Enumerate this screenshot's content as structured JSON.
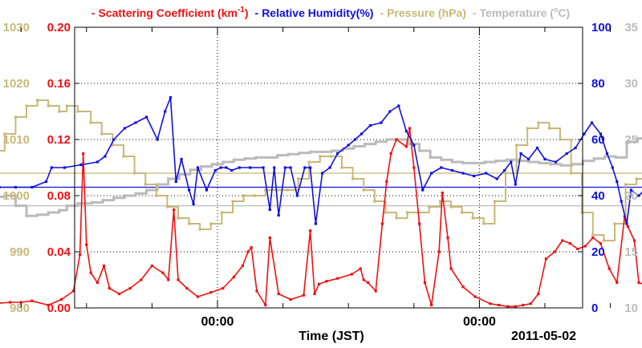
{
  "chart_data": {
    "type": "line",
    "xlabel": "Time (JST)",
    "date_label": "2011-05-02",
    "x_tick_labels": [
      "00:00",
      "00:00"
    ],
    "x_unit": "hours relative to first 00:00 mark",
    "legend": [
      {
        "prefix": "-",
        "text": "Scattering Coefficient (km",
        "sup": "-1",
        "suffix": ")",
        "color": "#ee1111"
      },
      {
        "prefix": "-",
        "text": "Relative Humidity(%)",
        "sup": "",
        "suffix": "",
        "color": "#1111dd"
      },
      {
        "prefix": "-",
        "text": "Pressure (hPa)",
        "sup": "",
        "suffix": "",
        "color": "#c8b878"
      },
      {
        "prefix": "-",
        "text": "Temperature (",
        "sup": "",
        "suffix": "C)",
        "color": "#bbbbbb"
      }
    ],
    "axes": {
      "pressure": {
        "ticks": [
          "980",
          "990",
          "1000",
          "1010",
          "1020",
          "1030"
        ],
        "range": [
          980,
          1030
        ],
        "color": "#c8b878"
      },
      "scattering": {
        "ticks": [
          "0.00",
          "0.04",
          "0.08",
          "0.12",
          "0.16",
          "0.20"
        ],
        "range": [
          0,
          0.2
        ],
        "color": "#ee1111"
      },
      "humidity": {
        "ticks": [
          "0",
          "20",
          "40",
          "60",
          "80",
          "100"
        ],
        "range": [
          0,
          100
        ],
        "color": "#1111dd"
      },
      "temperature": {
        "ticks": [
          "10",
          "15",
          "20",
          "25",
          "30",
          "35"
        ],
        "range": [
          10,
          35
        ],
        "color": "#bbbbbb"
      }
    },
    "grid": true,
    "reference_lines": [
      {
        "axis": "pressure",
        "value": 1004,
        "color": "#c8b878"
      },
      {
        "axis": "humidity",
        "value": 43,
        "color": "#1111dd"
      },
      {
        "axis": "temperature",
        "value": 19.1,
        "color": "#bbbbbb"
      }
    ],
    "series": [
      {
        "name": "Scattering Coefficient",
        "axis": "scattering",
        "color": "#ee1111",
        "x": [
          -21.3,
          -20.5,
          -19.0,
          -18.0,
          -17.0,
          -15.5,
          -14.3,
          -13.2,
          -12.6,
          -12.3,
          -12.0,
          -11.6,
          -11.0,
          -10.4,
          -9.9,
          -9.0,
          -8.0,
          -7.0,
          -6.0,
          -5.0,
          -4.5,
          -4.0,
          -3.6,
          -2.8,
          -1.8,
          -0.6,
          0.5,
          1.5,
          2.3,
          2.8,
          3.1,
          3.6,
          4.4,
          4.8,
          5.6,
          6.7,
          7.9,
          8.5,
          8.9,
          9.3,
          10.0,
          11.0,
          12.3,
          13.1,
          13.4,
          13.8,
          14.5,
          15.1,
          15.5,
          15.9,
          16.4,
          17.3,
          17.6,
          18.0,
          18.5,
          19.0,
          19.6,
          20.3,
          20.6,
          21.1,
          21.4,
          22.5,
          23.6,
          25.0,
          25.8,
          26.6,
          27.3,
          28.0,
          28.7,
          29.4,
          30.1,
          30.9,
          31.6,
          32.3,
          33.0,
          33.7,
          34.4,
          35.1,
          35.9,
          36.6,
          37.3,
          37.6,
          38.2,
          38.6,
          39.4
        ],
        "y": [
          0.01,
          0.003,
          0.004,
          0.004,
          0.005,
          0.002,
          0.006,
          0.012,
          0.038,
          0.11,
          0.045,
          0.025,
          0.018,
          0.03,
          0.014,
          0.01,
          0.014,
          0.02,
          0.03,
          0.025,
          0.02,
          0.07,
          0.02,
          0.014,
          0.008,
          0.011,
          0.014,
          0.022,
          0.03,
          0.04,
          0.043,
          0.012,
          0.002,
          0.05,
          0.01,
          0.006,
          0.009,
          0.055,
          0.01,
          0.017,
          0.019,
          0.021,
          0.024,
          0.028,
          0.02,
          0.018,
          0.012,
          0.06,
          0.09,
          0.11,
          0.12,
          0.115,
          0.128,
          0.1,
          0.06,
          0.018,
          0.002,
          0.04,
          0.082,
          0.05,
          0.028,
          0.015,
          0.008,
          0.003,
          0.002,
          0.001,
          0.001,
          0.002,
          0.003,
          0.01,
          0.035,
          0.04,
          0.048,
          0.046,
          0.042,
          0.044,
          0.05,
          0.046,
          0.028,
          0.018,
          0.065,
          0.058,
          0.048,
          0.018,
          0.016
        ]
      },
      {
        "name": "Relative Humidity(%)",
        "axis": "humidity",
        "color": "#1111dd",
        "x": [
          -21.3,
          -20.0,
          -18.5,
          -17.0,
          -15.7,
          -15.2,
          -14.0,
          -12.5,
          -11.0,
          -10.3,
          -9.5,
          -8.5,
          -7.5,
          -6.5,
          -5.5,
          -4.8,
          -4.3,
          -3.8,
          -3.3,
          -2.6,
          -2.2,
          -1.8,
          -1.0,
          -0.2,
          0.3,
          0.8,
          1.3,
          2.0,
          3.0,
          4.2,
          4.8,
          5.2,
          5.6,
          6.2,
          6.7,
          7.3,
          8.0,
          8.5,
          9.0,
          9.6,
          10.3,
          11.0,
          12.0,
          12.6,
          13.2,
          14.0,
          15.0,
          15.8,
          16.6,
          17.3,
          18.0,
          18.8,
          19.6,
          20.5,
          21.5,
          22.5,
          23.5,
          24.6,
          25.6,
          26.3,
          26.9,
          27.3,
          27.8,
          28.5,
          29.3,
          30.0,
          31.0,
          32.0,
          32.8,
          33.6,
          34.3,
          35.1,
          35.7,
          36.2,
          36.6,
          37.0,
          37.5,
          37.9,
          38.6,
          39.4
        ],
        "y": [
          42,
          43,
          43,
          43,
          45,
          50,
          50,
          51,
          52,
          54,
          60,
          64,
          66,
          68,
          60,
          70,
          75,
          45,
          53,
          42,
          37,
          50,
          42,
          49,
          50,
          50,
          49,
          50,
          50,
          50,
          35,
          50,
          33,
          50,
          50,
          40,
          50,
          50,
          30,
          48,
          50,
          55,
          58,
          60,
          62,
          65,
          66,
          70,
          72,
          63,
          58,
          42,
          48,
          50,
          49,
          48,
          47,
          48,
          46,
          49,
          52,
          44,
          55,
          53,
          57,
          53,
          52,
          55,
          57,
          62,
          66,
          62,
          55,
          50,
          45,
          38,
          30,
          42,
          40,
          43
        ]
      },
      {
        "name": "Pressure (hPa)",
        "axis": "pressure",
        "color": "#c8b878",
        "x": [
          -21.3,
          -20.5,
          -19.5,
          -18.5,
          -17.5,
          -16.5,
          -15.5,
          -14.5,
          -13.8,
          -12.8,
          -11.6,
          -10.6,
          -9.6,
          -8.6,
          -7.6,
          -6.6,
          -5.6,
          -4.6,
          -3.6,
          -2.6,
          -1.6,
          -0.6,
          0.4,
          1.4,
          2.4,
          3.4,
          4.4,
          5.4,
          6.4,
          7.4,
          8.4,
          9.4,
          10.4,
          11.4,
          12.4,
          13.4,
          14.4,
          15.4,
          16.4,
          17.4,
          18.4,
          19.4,
          20.4,
          21.4,
          22.4,
          23.4,
          24.4,
          25.4,
          26.4,
          27.4,
          28.4,
          29.4,
          30.4,
          31.4,
          32.4,
          33.4,
          34.4,
          35.4,
          36.4,
          37.4,
          38.4,
          39.4
        ],
        "y": [
          1005,
          1008,
          1011,
          1014,
          1016,
          1017,
          1016,
          1015,
          1016,
          1015,
          1013,
          1011,
          1009,
          1007,
          1004,
          1002,
          1000,
          998,
          996,
          995,
          994,
          995,
          997,
          999,
          1000,
          1000,
          1001,
          1001,
          1001,
          1003,
          1006,
          1007,
          1007,
          1005,
          1003,
          1001,
          999,
          997,
          996,
          997,
          997,
          998,
          999,
          998,
          997,
          996,
          995,
          999,
          1004,
          1009,
          1012,
          1013,
          1012,
          1010,
          1004,
          997,
          993,
          992,
          995,
          1002,
          1003,
          1004
        ]
      },
      {
        "name": "Temperature",
        "axis": "temperature",
        "color": "#bbbbbb",
        "x": [
          -21.3,
          -20.5,
          -19.5,
          -18.5,
          -17.5,
          -16.5,
          -15.5,
          -14.5,
          -13.8,
          -12.8,
          -11.5,
          -10.5,
          -9.5,
          -8.5,
          -7.5,
          -6.5,
          -5.5,
          -4.5,
          -3.5,
          -2.5,
          -1.5,
          -0.5,
          0.5,
          1.5,
          2.5,
          3.5,
          4.5,
          5.5,
          6.5,
          7.5,
          8.5,
          9.5,
          10.5,
          11.5,
          12.5,
          13.5,
          14.5,
          15.5,
          16.5,
          17.5,
          18.5,
          19.5,
          20.5,
          21.5,
          22.5,
          23.5,
          24.5,
          25.5,
          26.5,
          27.5,
          28.5,
          29.5,
          30.5,
          31.5,
          32.5,
          33.5,
          34.5,
          35.5,
          36.5,
          37.5,
          38.5,
          39.4
        ],
        "y": [
          19.1,
          19.9,
          20.0,
          19.1,
          18.2,
          18.3,
          18.5,
          18.7,
          19.1,
          19.3,
          19.4,
          19.6,
          19.8,
          20.0,
          20.2,
          20.5,
          21.0,
          21.5,
          21.9,
          22.3,
          22.6,
          22.8,
          23.0,
          23.2,
          23.3,
          23.4,
          23.4,
          23.6,
          23.7,
          23.8,
          23.9,
          23.9,
          24.0,
          24.2,
          24.4,
          24.6,
          24.8,
          25.0,
          25.0,
          24.6,
          24.0,
          23.4,
          23.2,
          23.0,
          22.9,
          22.9,
          23.0,
          23.1,
          23.2,
          23.1,
          23.0,
          22.9,
          22.8,
          22.7,
          22.8,
          23.1,
          23.3,
          23.5,
          23.4,
          24.8,
          25.1,
          23.4
        ]
      }
    ]
  }
}
